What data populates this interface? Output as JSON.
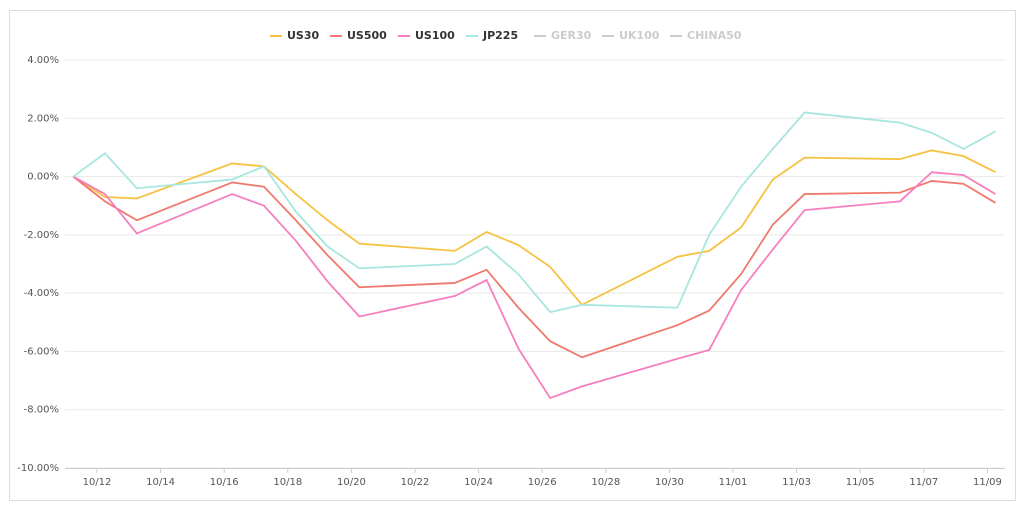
{
  "chart_data": {
    "type": "line",
    "x": [
      "10/11",
      "10/12",
      "10/13",
      "10/16",
      "10/17",
      "10/18",
      "10/19",
      "10/20",
      "10/23",
      "10/24",
      "10/25",
      "10/26",
      "10/27",
      "10/30",
      "10/31",
      "11/01",
      "11/02",
      "11/03",
      "11/06",
      "11/07",
      "11/08",
      "11/09"
    ],
    "series": [
      {
        "name": "US30",
        "color": "#f5c242",
        "values": [
          0,
          -0.7,
          -0.75,
          0.45,
          0.35,
          -0.6,
          -1.5,
          -2.3,
          -2.55,
          -1.9,
          -2.35,
          -3.1,
          -4.4,
          -2.75,
          -2.55,
          -1.75,
          -0.1,
          0.65,
          0.6,
          0.9,
          0.7,
          0.15
        ]
      },
      {
        "name": "US500",
        "color": "#f0796e",
        "values": [
          0,
          -0.85,
          -1.5,
          -0.2,
          -0.35,
          -1.5,
          -2.7,
          -3.8,
          -3.65,
          -3.2,
          -4.5,
          -5.65,
          -6.2,
          -5.1,
          -4.6,
          -3.35,
          -1.65,
          -0.6,
          -0.55,
          -0.15,
          -0.25,
          -0.9
        ]
      },
      {
        "name": "US100",
        "color": "#f57fbf",
        "values": [
          0,
          -0.6,
          -1.95,
          -0.6,
          -1.0,
          -2.2,
          -3.6,
          -4.8,
          -4.1,
          -3.55,
          -5.9,
          -7.6,
          -7.2,
          -6.25,
          -5.95,
          -3.9,
          -2.5,
          -1.15,
          -0.85,
          0.15,
          0.05,
          -0.6
        ]
      },
      {
        "name": "JP225",
        "color": "#a8e6e0",
        "values": [
          0,
          0.8,
          -0.4,
          -0.1,
          0.35,
          -1.2,
          -2.4,
          -3.15,
          -3.0,
          -2.4,
          -3.35,
          -4.65,
          -4.4,
          -4.5,
          -2.0,
          -0.35,
          0.95,
          2.2,
          1.85,
          1.5,
          0.95,
          1.55
        ]
      },
      {
        "name": "GER30",
        "color": "#cccccc",
        "visible": false
      },
      {
        "name": "UK100",
        "color": "#cccccc",
        "visible": false
      },
      {
        "name": "CHINA50",
        "color": "#cccccc",
        "visible": false
      }
    ],
    "ylim": [
      -10,
      4
    ],
    "yticks": [
      {
        "value": -10,
        "label": "-10.00%"
      },
      {
        "value": -8,
        "label": "-8.00%"
      },
      {
        "value": -6,
        "label": "-6.00%"
      },
      {
        "value": -4,
        "label": "-4.00%"
      },
      {
        "value": -2,
        "label": "-2.00%"
      },
      {
        "value": 0,
        "label": "0.00%"
      },
      {
        "value": 2,
        "label": "2.00%"
      },
      {
        "value": 4,
        "label": "4.00%"
      }
    ],
    "xticks": [
      "10/12",
      "10/14",
      "10/16",
      "10/18",
      "10/20",
      "10/22",
      "10/24",
      "10/26",
      "10/28",
      "10/30",
      "11/01",
      "11/03",
      "11/05",
      "11/07",
      "11/09"
    ],
    "grid": true
  }
}
